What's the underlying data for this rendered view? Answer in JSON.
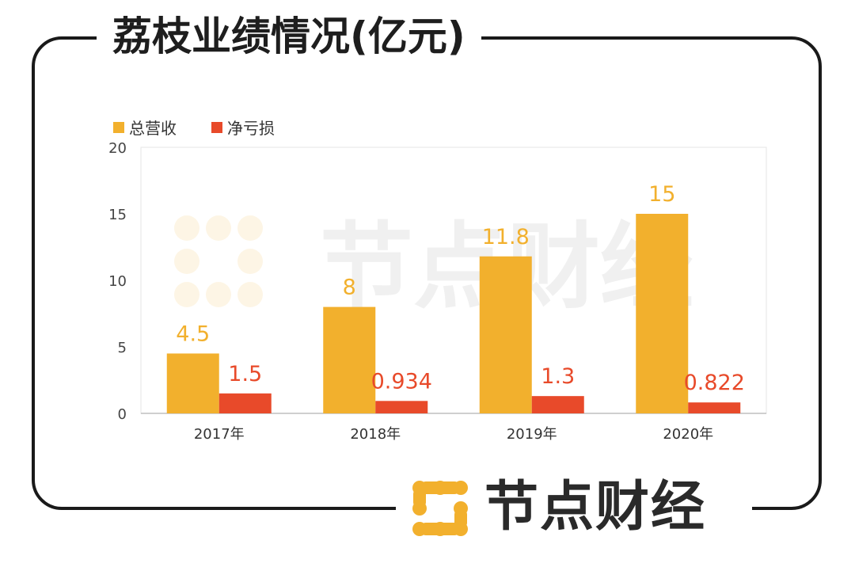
{
  "title": "荔枝业绩情况(亿元)",
  "watermark": "节点财经",
  "brand": "节点财经",
  "colors": {
    "revenue": "#F2B02D",
    "loss": "#E84A2A"
  },
  "chart_data": {
    "type": "bar",
    "title": "荔枝业绩情况(亿元)",
    "categories": [
      "2017年",
      "2018年",
      "2019年",
      "2020年"
    ],
    "series": [
      {
        "name": "总营收",
        "values": [
          4.5,
          8,
          11.8,
          15
        ],
        "labels": [
          "4.5",
          "8",
          "11.8",
          "15"
        ],
        "color": "#F2B02D"
      },
      {
        "name": "净亏损",
        "values": [
          1.5,
          0.934,
          1.3,
          0.822
        ],
        "labels": [
          "1.5",
          "0.934",
          "1.3",
          "0.822"
        ],
        "color": "#E84A2A"
      }
    ],
    "ylim": [
      0,
      20
    ],
    "yticks": [
      "0",
      "5",
      "10",
      "15",
      "20"
    ],
    "legend": "top-left",
    "grid": false
  }
}
